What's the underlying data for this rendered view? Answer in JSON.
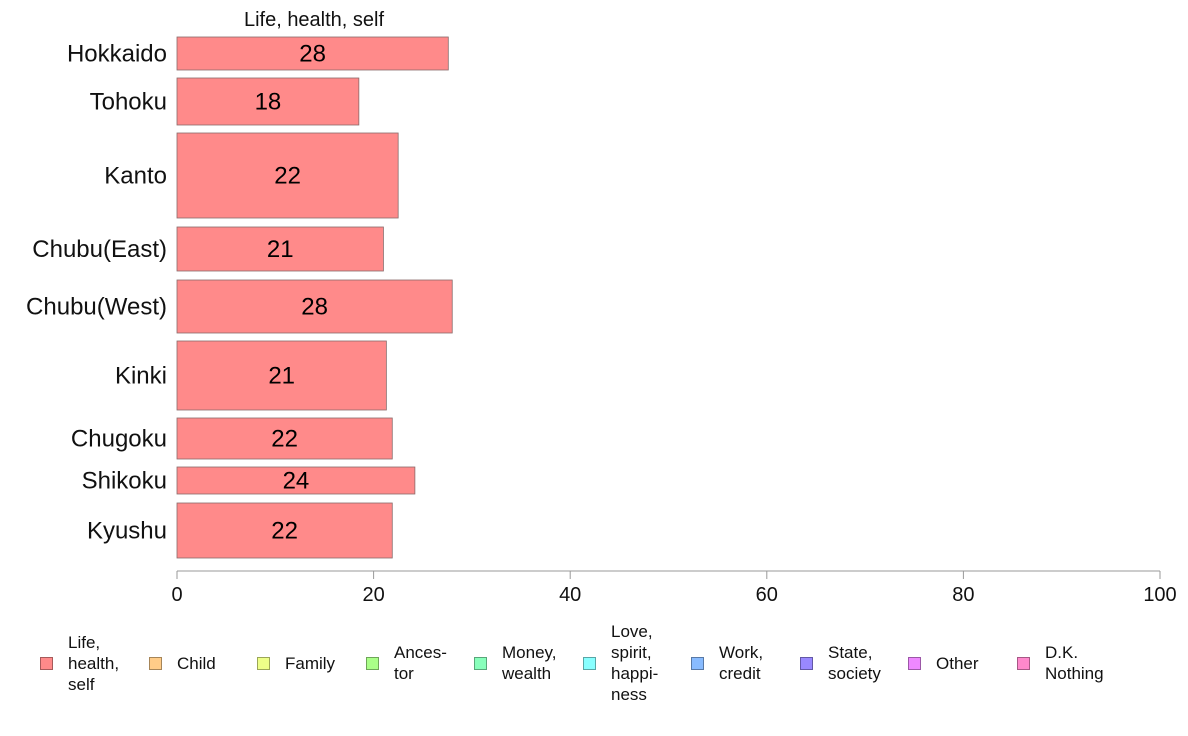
{
  "chart_data": {
    "type": "bar",
    "orientation": "horizontal",
    "series_title": "Life, health, self",
    "categories": [
      "Hokkaido",
      "Tohoku",
      "Kanto",
      "Chubu(East)",
      "Chubu(West)",
      "Kinki",
      "Chugoku",
      "Shikoku",
      "Kyushu"
    ],
    "values": [
      27.6,
      18.5,
      22.5,
      21.0,
      28.0,
      21.3,
      21.9,
      24.2,
      21.9
    ],
    "labels": [
      "28",
      "18",
      "22",
      "21",
      "28",
      "21",
      "22",
      "24",
      "22"
    ],
    "xlim": [
      0,
      100
    ],
    "x_ticks": [
      0,
      20,
      40,
      60,
      80,
      100
    ],
    "x_tick_labels": [
      "0",
      "20",
      "40",
      "60",
      "80",
      "100"
    ],
    "bar_color": "#ff8a8a",
    "legend_position": "bottom",
    "legend": [
      {
        "label": "Life,\nhealth,\nself",
        "color": "#ff8a8a"
      },
      {
        "label": "Child",
        "color": "#ffcc88"
      },
      {
        "label": "Family",
        "color": "#eeff88"
      },
      {
        "label": "Ances-\ntor",
        "color": "#aaff88"
      },
      {
        "label": "Money,\nwealth",
        "color": "#88ffbb"
      },
      {
        "label": "Love,\nspirit,\nhappi-\nness",
        "color": "#88ffff"
      },
      {
        "label": "Work,\ncredit",
        "color": "#88bbff"
      },
      {
        "label": "State,\nsociety",
        "color": "#9988ff"
      },
      {
        "label": "Other",
        "color": "#ee88ff"
      },
      {
        "label": "D.K.\nNothing",
        "color": "#ff88cc"
      }
    ]
  }
}
